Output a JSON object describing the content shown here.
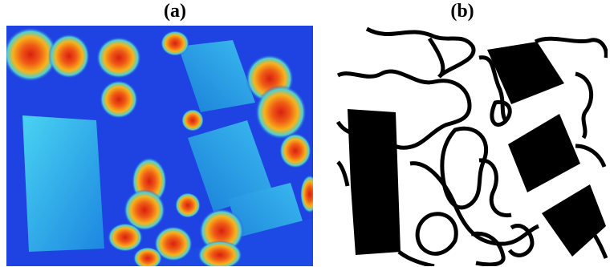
{
  "labels": {
    "a": "(a)",
    "b": "(b)"
  },
  "panel_a": {
    "description_colormap": "jet",
    "colors": {
      "background": "#1f3be0",
      "building": "#21a7e8",
      "building_light": "#3fc3f0",
      "tree_red": "#e0301a",
      "tree_orange": "#f6a019",
      "tree_yellow": "#f2e33a"
    }
  },
  "panel_b": {
    "colors": {
      "background": "#ffffff",
      "shape": "#000000"
    }
  }
}
